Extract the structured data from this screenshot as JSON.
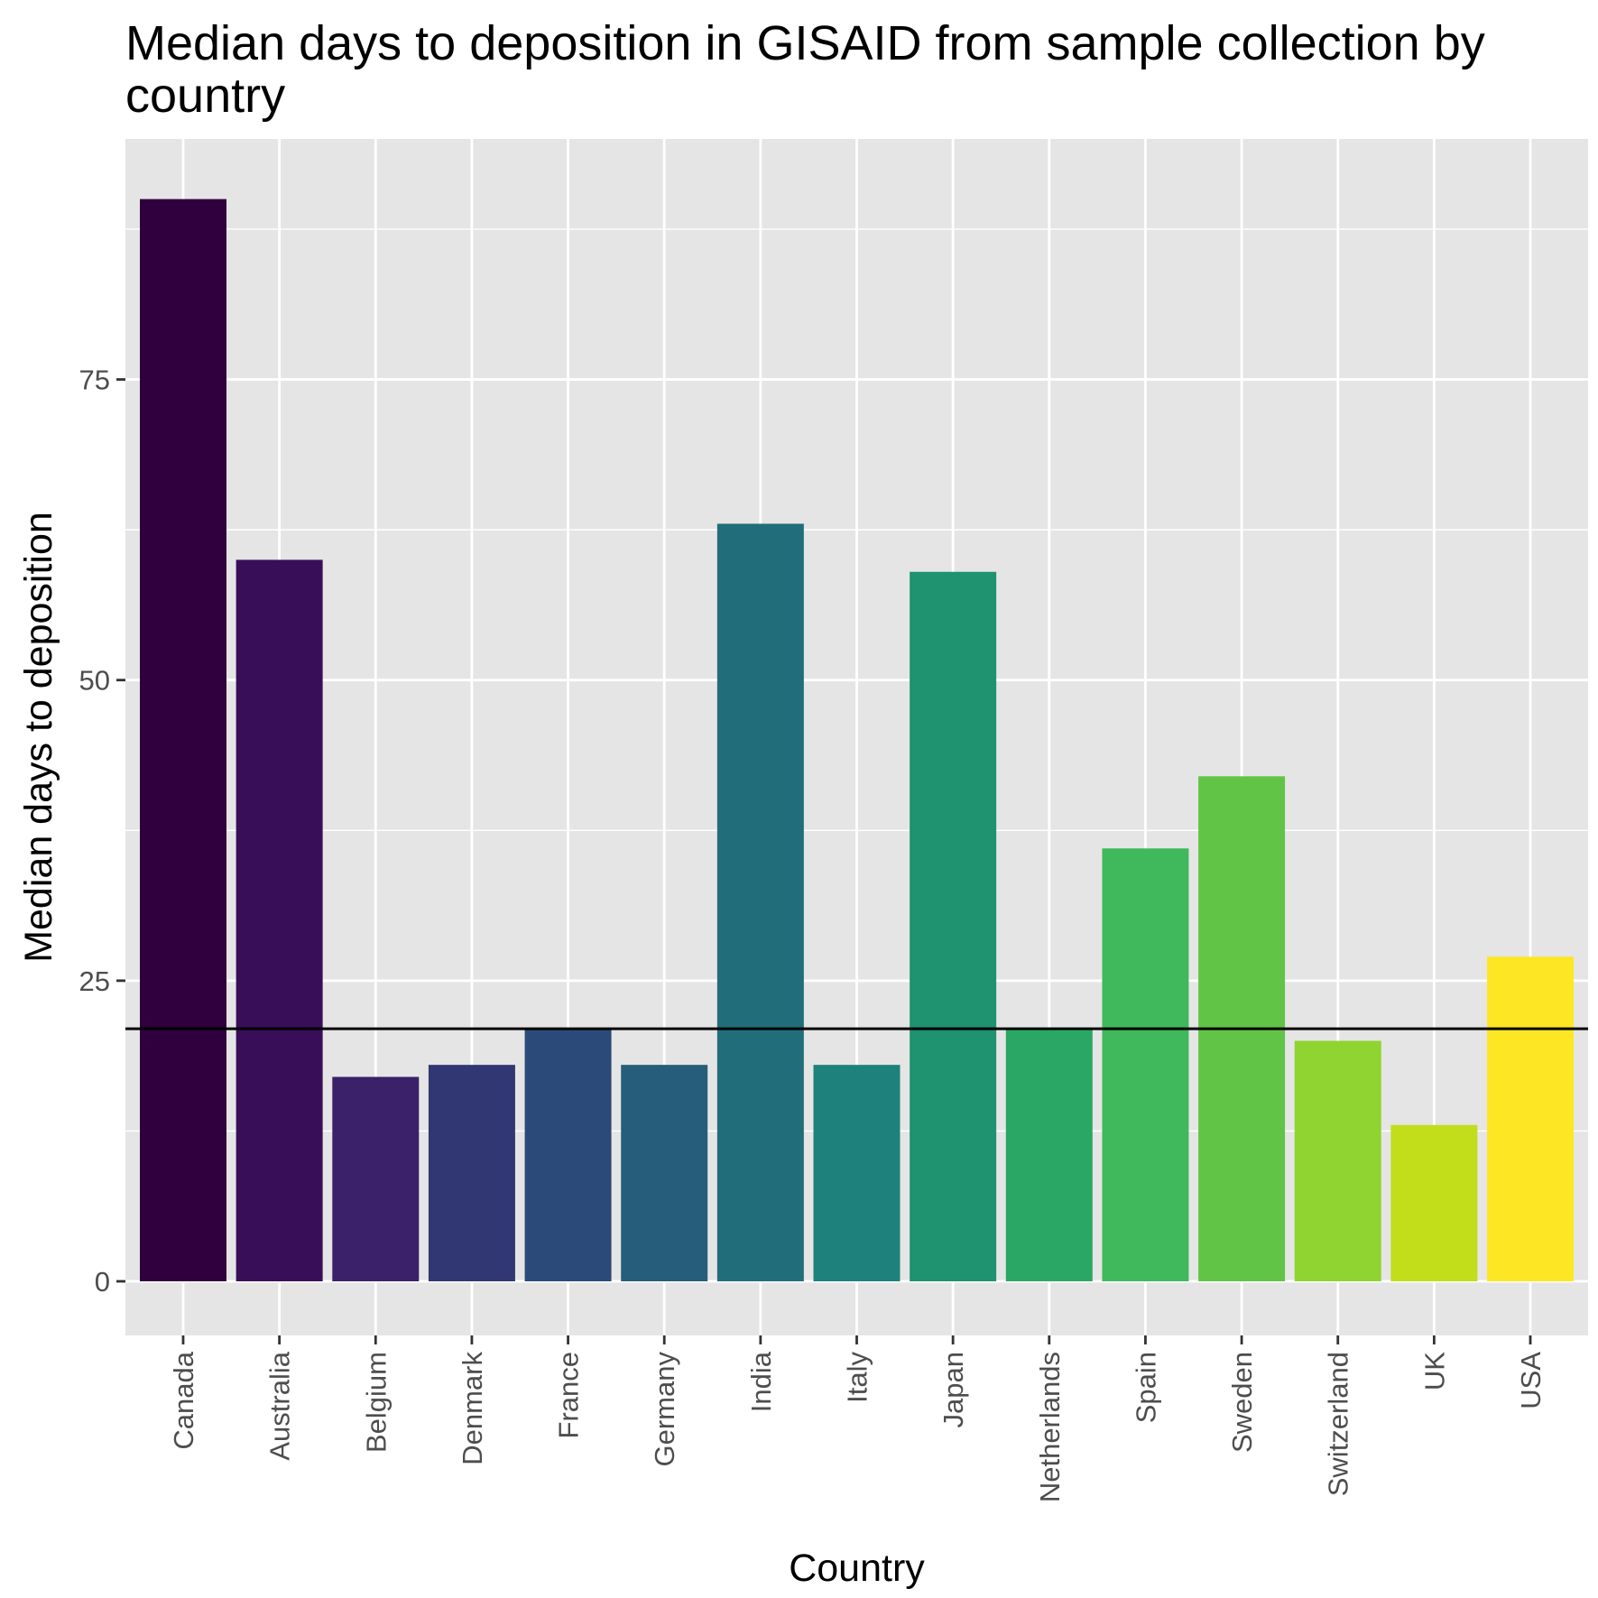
{
  "chart_data": {
    "type": "bar",
    "title_line1": "Median days to deposition in GISAID from sample collection by",
    "title_line2": "country",
    "xlabel": "Country",
    "ylabel": "Median days to deposition",
    "categories": [
      "Canada",
      "Australia",
      "Belgium",
      "Denmark",
      "France",
      "Germany",
      "India",
      "Italy",
      "Japan",
      "Netherlands",
      "Spain",
      "Sweden",
      "Switzerland",
      "UK",
      "USA"
    ],
    "values": [
      90,
      60,
      17,
      18,
      21,
      18,
      63,
      18,
      59,
      21,
      36,
      42,
      20,
      13,
      27
    ],
    "colors": [
      "#30003e",
      "#370e57",
      "#3a2169",
      "#303773",
      "#2b4a7a",
      "#265d7b",
      "#216d7a",
      "#1f817b",
      "#1f926f",
      "#2aa665",
      "#40b85c",
      "#62c447",
      "#8fd430",
      "#c2dd1a",
      "#fde725"
    ],
    "reference_line": 21,
    "ylim": [
      -4.5,
      95
    ],
    "yticks": [
      0,
      25,
      50,
      75
    ],
    "ytick_labels": [
      "0",
      "25",
      "50",
      "75"
    ],
    "grid": true,
    "legend": "none",
    "panel_color": "#e5e5e5",
    "grid_color": "#ffffff",
    "reference_line_color": "#000000"
  }
}
